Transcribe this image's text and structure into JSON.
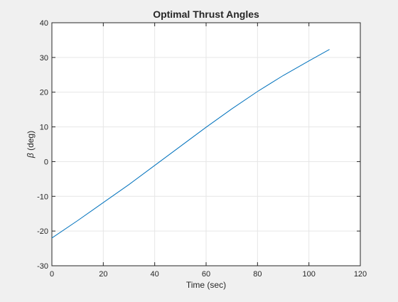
{
  "chart_data": {
    "type": "line",
    "title": "Optimal Thrust Angles",
    "xlabel": "Time (sec)",
    "ylabel_symbol": "β",
    "ylabel_unit": " (deg)",
    "xlim": [
      0,
      120
    ],
    "ylim": [
      -30,
      40
    ],
    "xticks": [
      0,
      20,
      40,
      60,
      80,
      100,
      120
    ],
    "yticks": [
      -30,
      -20,
      -10,
      0,
      10,
      20,
      30,
      40
    ],
    "grid": true,
    "series": [
      {
        "color": "#0072bd",
        "x": [
          0,
          10,
          20,
          30,
          40,
          50,
          60,
          70,
          80,
          90,
          100,
          108
        ],
        "y": [
          -22,
          -17,
          -11.8,
          -6.6,
          -1.1,
          4.4,
          9.9,
          15.2,
          20.2,
          24.8,
          29.0,
          32.3
        ]
      }
    ]
  }
}
